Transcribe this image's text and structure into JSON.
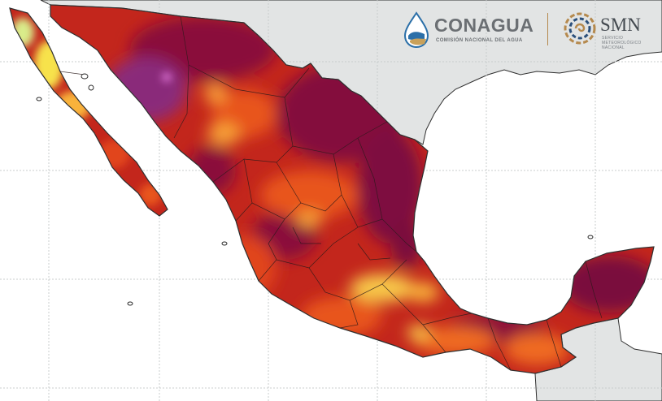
{
  "map": {
    "type": "heat-map",
    "region": "Mexico",
    "colors": {
      "background_ocean": "#ffffff",
      "neighbor_land": "#e2e4e4",
      "graticule": "#c8cccc",
      "coastline": "#2f2f2f",
      "state_borders": "#2a1a1a",
      "heat_scale": [
        "#d9ec8a",
        "#f7e24c",
        "#f9b23a",
        "#f37b22",
        "#e1451a",
        "#c3261c",
        "#9b1433",
        "#7a0b3e",
        "#8a2a7a",
        "#d96fd0"
      ]
    }
  },
  "logos": {
    "conagua_name": "CONAGUA",
    "conagua_subtitle": "COMISIÓN NACIONAL DEL AGUA",
    "smn_name": "SMN",
    "smn_subtitle_line1": "SERVICIO",
    "smn_subtitle_line2": "METEOROLÓGICO",
    "smn_subtitle_line3": "NACIONAL"
  }
}
